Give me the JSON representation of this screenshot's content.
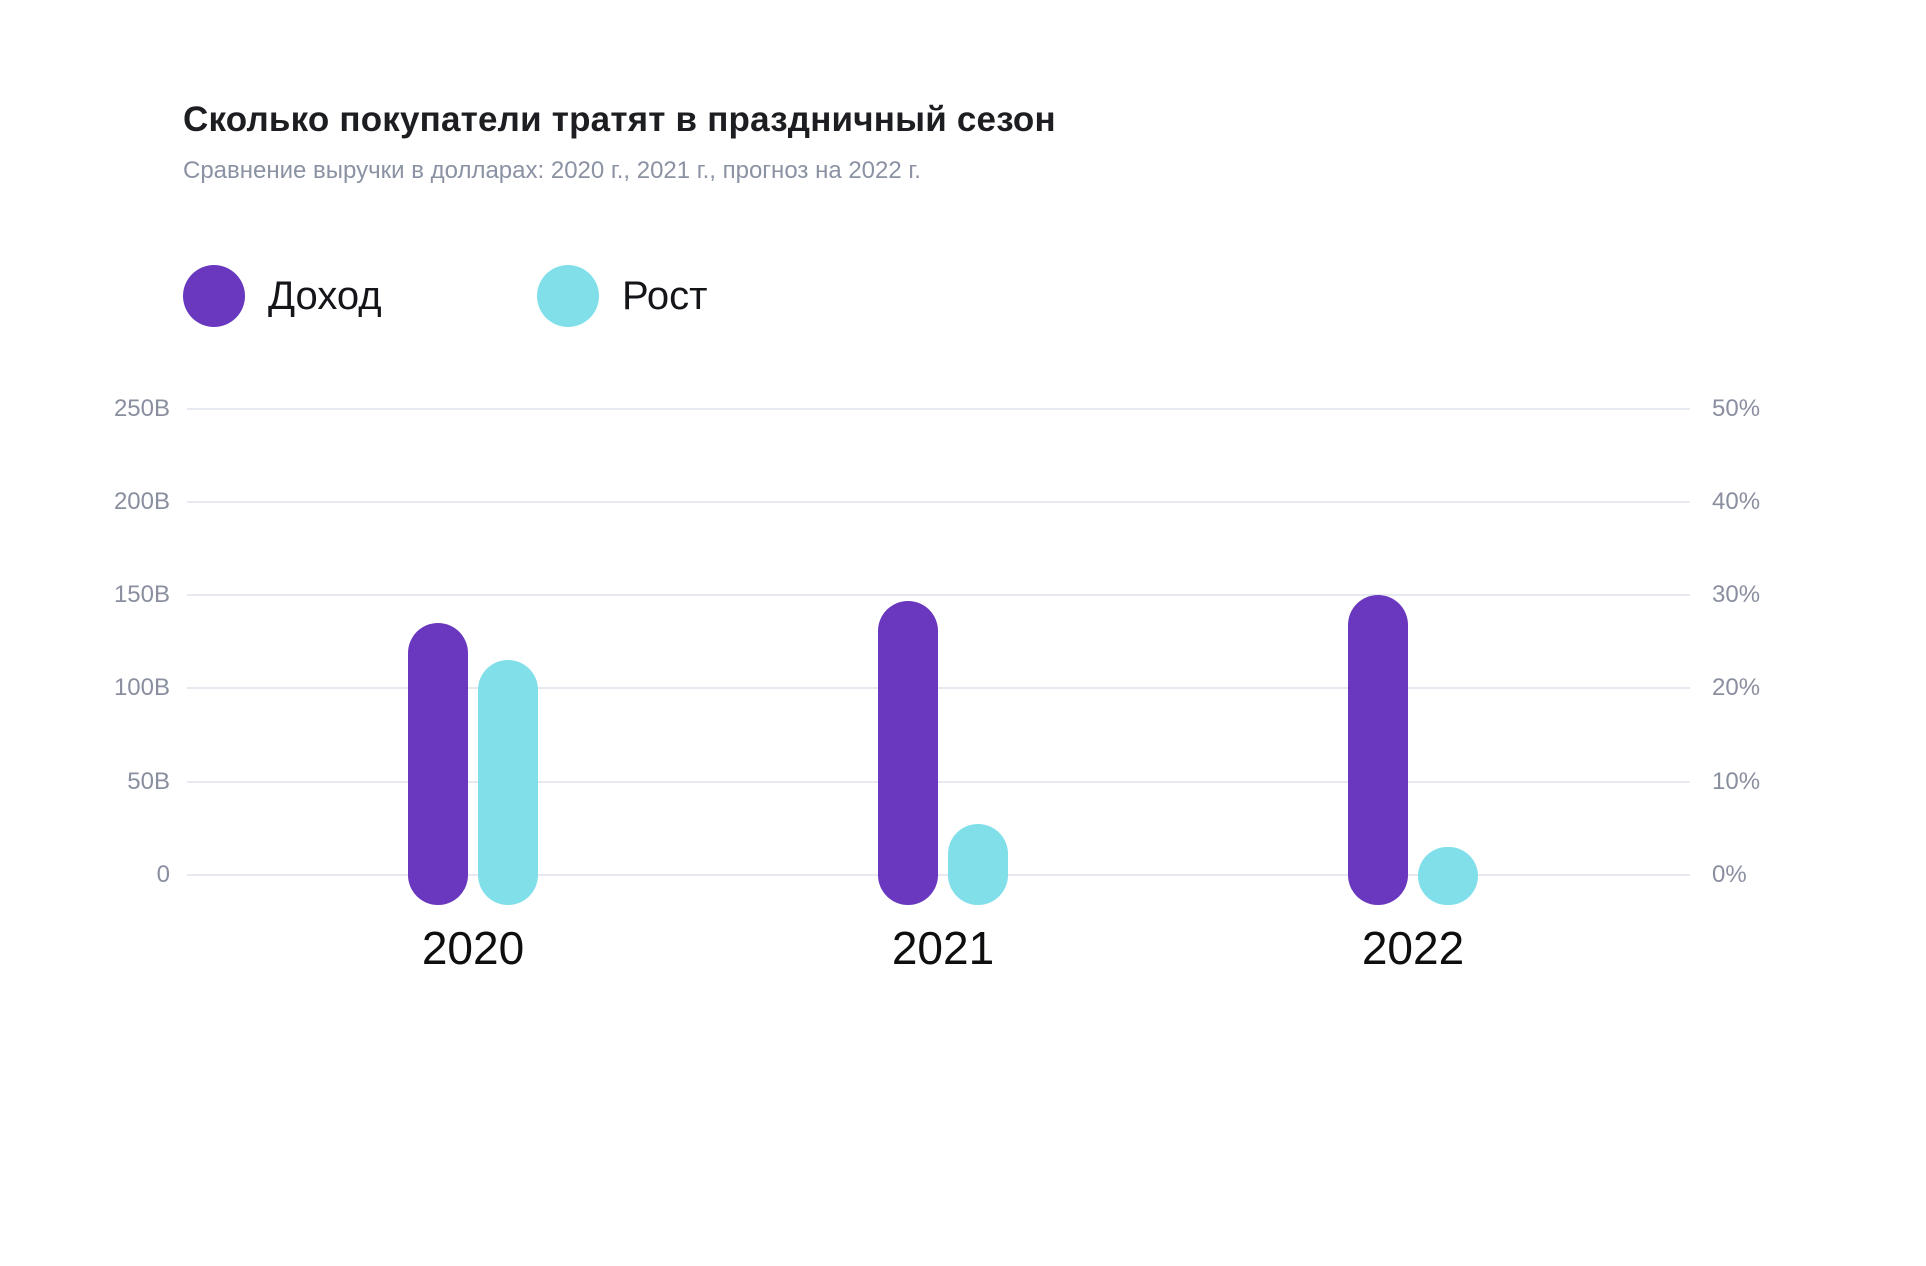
{
  "chart_data": {
    "type": "bar",
    "title": "Сколько покупатели тратят в праздничный сезон",
    "subtitle": "Сравнение выручки в долларах: 2020 г., 2021 г., прогноз на 2022 г.",
    "categories": [
      "2020",
      "2021",
      "2022"
    ],
    "series": [
      {
        "key": "revenue",
        "name": "Доход",
        "axis": "left",
        "color": "#6938BE",
        "values": [
          135,
          147,
          150
        ]
      },
      {
        "key": "growth",
        "name": "Рост",
        "axis": "right",
        "color": "#80DFE9",
        "values": [
          23,
          5.5,
          3
        ]
      }
    ],
    "left_axis": {
      "tick_labels": [
        "250B",
        "200B",
        "150B",
        "100B",
        "50B",
        "0"
      ],
      "min": 0,
      "max": 250
    },
    "right_axis": {
      "tick_labels": [
        "50%",
        "40%",
        "30%",
        "20%",
        "10%",
        "0%"
      ],
      "min": 0,
      "max": 50
    },
    "grid": true,
    "legend_position": "top-left",
    "background_color": "#ffffff",
    "gridline_color": "#e7e9f0",
    "text_colors": {
      "title": "#1d1e21",
      "subtitle": "#8a92a3",
      "ticks": "#8a8fa0",
      "categories": "#0d0e10"
    }
  }
}
